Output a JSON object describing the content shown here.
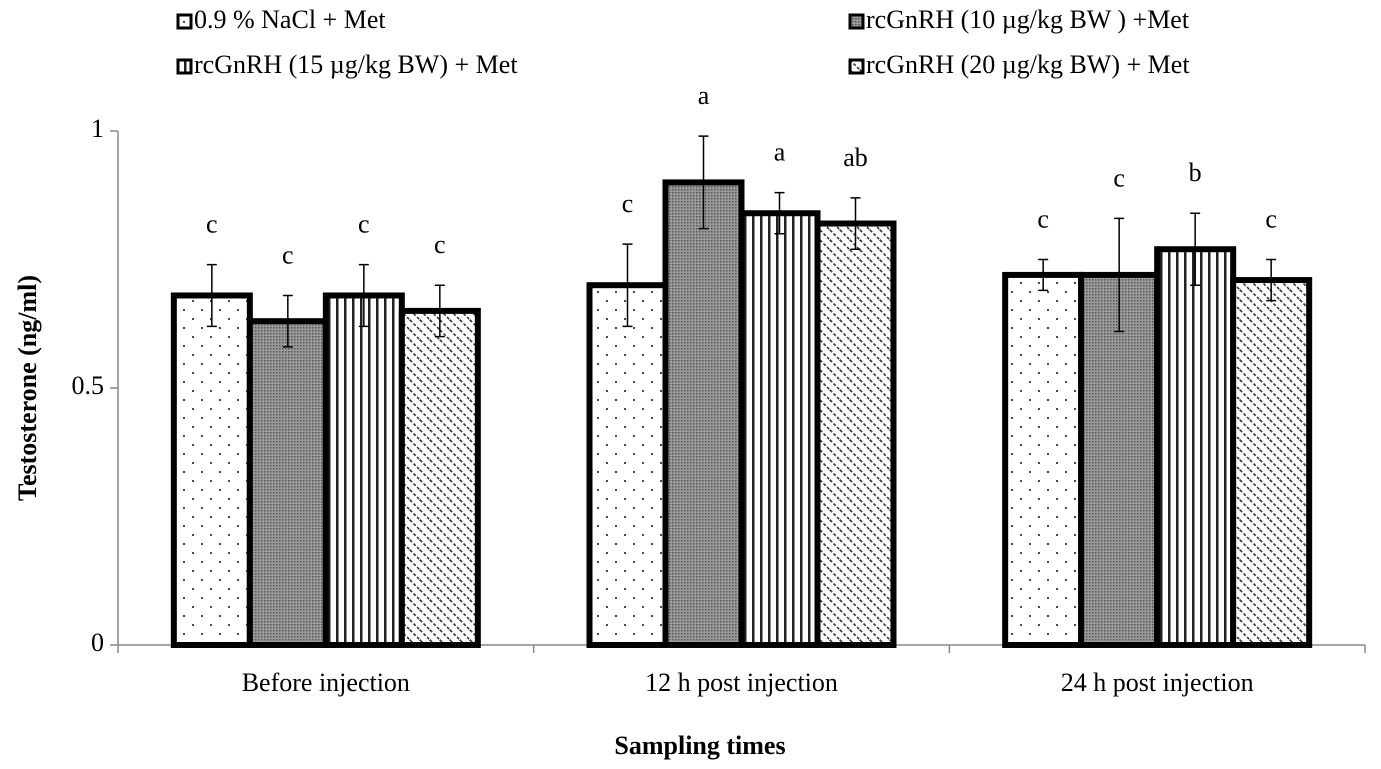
{
  "chart_data": {
    "type": "bar",
    "y_label": "Testosterone (ng/ml)",
    "x_label": "Sampling times",
    "categories": [
      "Before injection",
      "12 h post  injection",
      "24 h post  injection"
    ],
    "ylim": [
      0,
      1
    ],
    "yticks": [
      0,
      0.5,
      1
    ],
    "grid": false,
    "legend": "top",
    "series": [
      {
        "name": "0.9 % NaCl + Met",
        "color": "#000000",
        "pattern": "dots",
        "values": [
          0.68,
          0.7,
          0.72
        ],
        "errors": [
          0.06,
          0.08,
          0.03
        ],
        "letters": [
          "c",
          "c",
          "c"
        ]
      },
      {
        "name": "rcGnRH (10 µg/kg BW ) +Met",
        "color": "#000000",
        "pattern": "dense",
        "values": [
          0.63,
          0.9,
          0.72
        ],
        "errors": [
          0.05,
          0.09,
          0.11
        ],
        "letters": [
          "c",
          "a",
          "c"
        ]
      },
      {
        "name": "rcGnRH (15 µg/kg BW) + Met",
        "color": "#000000",
        "pattern": "vertical",
        "values": [
          0.68,
          0.84,
          0.77
        ],
        "errors": [
          0.06,
          0.04,
          0.07
        ],
        "letters": [
          "c",
          "a",
          "b"
        ]
      },
      {
        "name": "rcGnRH (20 µg/kg BW) + Met",
        "color": "#000000",
        "pattern": "diagonal",
        "values": [
          0.65,
          0.82,
          0.71
        ],
        "errors": [
          0.05,
          0.05,
          0.04
        ],
        "letters": [
          "c",
          "ab",
          "c"
        ]
      }
    ]
  }
}
